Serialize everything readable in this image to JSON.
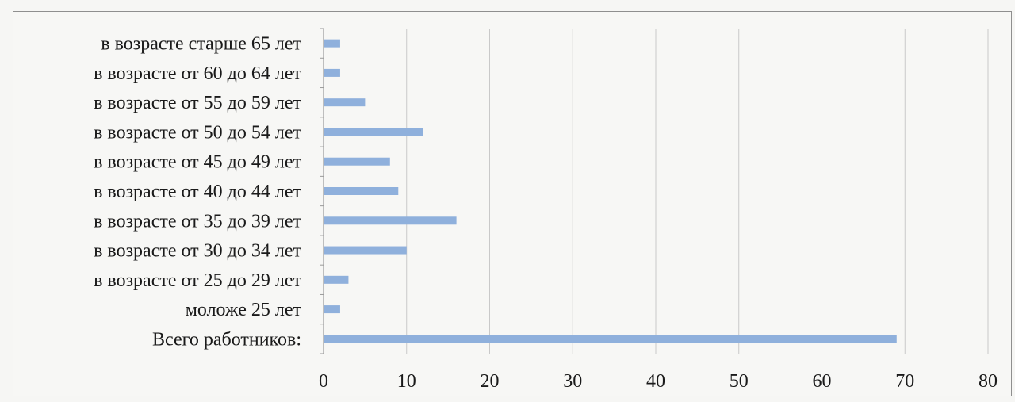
{
  "chart_data": {
    "type": "bar",
    "orientation": "horizontal",
    "title": "",
    "xlabel": "",
    "ylabel": "",
    "xlim": [
      0,
      80
    ],
    "xticks": [
      0,
      10,
      20,
      30,
      40,
      50,
      60,
      70,
      80
    ],
    "xtick_labels": [
      "0",
      "10",
      "20",
      "30",
      "40",
      "50",
      "60",
      "70",
      "80"
    ],
    "grid": "vertical",
    "legend": "none",
    "bar_color": "#8fb0dc",
    "categories": [
      "в возрасте старше 65 лет",
      "в возрасте от 60 до 64 лет",
      "в возрасте от 55 до 59 лет",
      "в возрасте от 50 до 54 лет",
      "в возрасте от 45 до 49 лет",
      "в возрасте от 40 до 44 лет",
      "в возрасте от 35 до 39 лет",
      "в возрасте от 30 до 34 лет",
      "в возрасте от 25 до 29 лет",
      "моложе 25 лет",
      "Всего работников:"
    ],
    "values": [
      2,
      2,
      5,
      12,
      8,
      9,
      16,
      10,
      3,
      2,
      69
    ]
  }
}
